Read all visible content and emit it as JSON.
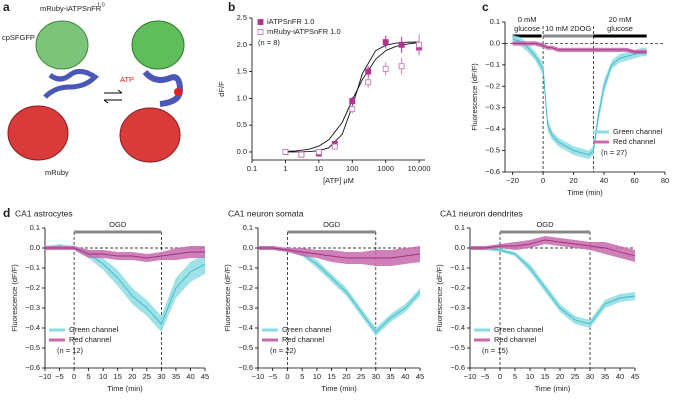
{
  "figure": {
    "panel_labels": [
      "a",
      "b",
      "c",
      "d"
    ],
    "structure": {
      "title": "mRuby-iATPSnFR",
      "title_sup": "1.0",
      "top_label": "cpSFGFP",
      "ligand": "ATP",
      "bottom_label": "mRuby"
    }
  },
  "chart_data": [
    {
      "type": "scatter",
      "xscale": "log",
      "x_label": "[ATP] μM",
      "y_label": "dF/F",
      "annotation": "(n = 8)",
      "legend": "upper left",
      "x": [
        1,
        3,
        10,
        30,
        100,
        300,
        1000,
        3000,
        10000
      ],
      "xlim": [
        0.1,
        15000
      ],
      "xticks": [
        0.1,
        1,
        10,
        100,
        1000,
        {
          "value": 10000,
          "label": "10,000"
        }
      ],
      "ylim": [
        -0.15,
        2.5
      ],
      "yticks": [
        {
          "value": 0,
          "label": "0.0"
        },
        0.5,
        {
          "value": 1,
          "label": "1.0"
        },
        1.5,
        {
          "value": 2,
          "label": "2.0"
        },
        2.5
      ],
      "series": [
        {
          "name": "iATPSnFR 1.0",
          "color": "#b0338f",
          "marker": "filled",
          "values": [
            0,
            -0.05,
            -0.03,
            0.15,
            0.95,
            1.5,
            2.05,
            2.0,
            1.95
          ],
          "errors": [
            0.03,
            0.03,
            0.03,
            0.05,
            0.08,
            0.1,
            0.12,
            0.15,
            0.12
          ]
        },
        {
          "name": "mRuby-iATPSnFR 1.0",
          "color": "#c77dbb",
          "marker": "open",
          "values": [
            0,
            -0.05,
            0,
            0.1,
            0.8,
            1.3,
            1.55,
            1.6,
            2.0
          ],
          "errors": [
            0.03,
            0.03,
            0.03,
            0.05,
            0.08,
            0.1,
            0.12,
            0.15,
            0.2
          ]
        }
      ],
      "fits": [
        {
          "color": "#111",
          "x": [
            1,
            2,
            5,
            10,
            20,
            50,
            100,
            200,
            500,
            1000,
            2000,
            5000,
            10000
          ],
          "values": [
            0,
            0.001,
            0.007,
            0.022,
            0.08,
            0.33,
            0.85,
            1.46,
            1.89,
            1.99,
            2.03,
            2.05,
            2.05
          ]
        },
        {
          "color": "#111",
          "x": [
            1,
            2,
            5,
            10,
            20,
            50,
            100,
            200,
            500,
            1000,
            2000,
            5000,
            10000
          ],
          "values": [
            0.01,
            0.02,
            0.05,
            0.11,
            0.23,
            0.55,
            0.97,
            1.35,
            1.73,
            1.89,
            1.97,
            2.02,
            2.04
          ]
        }
      ]
    },
    {
      "type": "line",
      "x_label": "Time (min)",
      "y_label": "Fluorescence (dF/F)",
      "annotation": "(n = 27)",
      "legend": "lower right",
      "x": [
        -20,
        -15,
        -10,
        -5,
        0,
        3,
        6,
        10,
        15,
        20,
        25,
        30,
        33,
        36,
        40,
        45,
        50,
        55,
        60,
        65,
        68
      ],
      "xlim": [
        -25,
        80
      ],
      "xticks": [
        {
          "value": -20,
          "label": "−20"
        },
        0,
        20,
        40,
        60,
        80
      ],
      "ylim": [
        -0.6,
        0.1
      ],
      "yticks": [
        0.1,
        {
          "value": 0,
          "label": "0.0"
        },
        {
          "value": -0.1,
          "label": "−0.1"
        },
        {
          "value": -0.2,
          "label": "−0.2"
        },
        {
          "value": -0.3,
          "label": "−0.3"
        },
        {
          "value": -0.4,
          "label": "−0.4"
        },
        {
          "value": -0.5,
          "label": "−0.5"
        },
        {
          "value": -0.6,
          "label": "−0.6"
        }
      ],
      "hline": 0,
      "vlines": [
        0,
        33
      ],
      "periods": [
        {
          "label": [
            "0 mM",
            "glucose"
          ],
          "start": -20,
          "end": -1,
          "color": "#000"
        },
        {
          "label": [
            "10 mM 2DOG"
          ],
          "start": 0,
          "end": 33,
          "color": "#888"
        },
        {
          "label": [
            "20 mM",
            "glucose"
          ],
          "start": 33,
          "end": 68,
          "color": "#000"
        }
      ],
      "series": [
        {
          "name": "Green channel",
          "color": "#3fb9c6",
          "band_color": "#8ddce2",
          "values": [
            0.02,
            0.01,
            -0.02,
            -0.06,
            -0.12,
            -0.38,
            -0.43,
            -0.46,
            -0.48,
            -0.5,
            -0.51,
            -0.52,
            -0.5,
            -0.35,
            -0.2,
            -0.1,
            -0.07,
            -0.06,
            -0.05,
            -0.04,
            -0.04
          ],
          "errors": [
            0.02,
            0.02,
            0.02,
            0.02,
            0.03,
            0.03,
            0.02,
            0.02,
            0.02,
            0.02,
            0.02,
            0.02,
            0.02,
            0.03,
            0.03,
            0.02,
            0.02,
            0.02,
            0.02,
            0.02,
            0.02
          ]
        },
        {
          "name": "Red channel",
          "color": "#a0317f",
          "band_color": "#c86aab",
          "values": [
            0,
            0,
            0,
            0,
            -0.01,
            -0.02,
            -0.02,
            -0.03,
            -0.03,
            -0.03,
            -0.03,
            -0.03,
            -0.03,
            -0.03,
            -0.03,
            -0.03,
            -0.03,
            -0.03,
            -0.04,
            -0.04,
            -0.04
          ],
          "errors": [
            0.01,
            0.01,
            0.01,
            0.01,
            0.01,
            0.01,
            0.01,
            0.01,
            0.01,
            0.01,
            0.01,
            0.01,
            0.01,
            0.01,
            0.01,
            0.01,
            0.01,
            0.01,
            0.01,
            0.01,
            0.01
          ]
        }
      ]
    },
    {
      "type": "line",
      "title": "CA1 astrocytes",
      "x_label": "Time (min)",
      "y_label": "Fluorescence (dF/F)",
      "annotation": "(n = 12)",
      "legend": "lower left",
      "x": [
        -10,
        -5,
        0,
        5,
        10,
        15,
        20,
        25,
        30,
        35,
        40,
        45
      ],
      "xlim": [
        -10,
        45
      ],
      "xticks": [
        {
          "value": -10,
          "label": "−10"
        },
        {
          "value": -5,
          "label": "−5"
        },
        0,
        5,
        10,
        15,
        20,
        25,
        30,
        35,
        40,
        45
      ],
      "ylim": [
        -0.6,
        0.1
      ],
      "yticks": [
        0.1,
        {
          "value": 0,
          "label": "0.0"
        },
        {
          "value": -0.1,
          "label": "−0.1"
        },
        {
          "value": -0.2,
          "label": "−0.2"
        },
        {
          "value": -0.3,
          "label": "−0.3"
        },
        {
          "value": -0.4,
          "label": "−0.4"
        },
        {
          "value": -0.5,
          "label": "−0.5"
        },
        {
          "value": -0.6,
          "label": "−0.6"
        }
      ],
      "hline": 0,
      "vlines": [
        0,
        30
      ],
      "periods": [
        {
          "label": [
            "OGD"
          ],
          "start": 0,
          "end": 30,
          "color": "#888"
        }
      ],
      "series": [
        {
          "name": "Green channel",
          "color": "#3fb9c6",
          "band_color": "#8ddce2",
          "values": [
            0,
            0.01,
            0,
            -0.03,
            -0.08,
            -0.15,
            -0.24,
            -0.3,
            -0.38,
            -0.2,
            -0.12,
            -0.08
          ],
          "errors": [
            0.01,
            0.01,
            0.01,
            0.02,
            0.03,
            0.04,
            0.04,
            0.04,
            0.04,
            0.05,
            0.05,
            0.05
          ]
        },
        {
          "name": "Red channel",
          "color": "#a0317f",
          "band_color": "#c86aab",
          "values": [
            0,
            0,
            0,
            -0.03,
            -0.03,
            -0.04,
            -0.04,
            -0.05,
            -0.04,
            -0.03,
            -0.02,
            -0.02
          ],
          "errors": [
            0.01,
            0.01,
            0.01,
            0.02,
            0.02,
            0.02,
            0.02,
            0.02,
            0.02,
            0.03,
            0.03,
            0.03
          ]
        }
      ]
    },
    {
      "type": "line",
      "title": "CA1 neuron somata",
      "x_label": "Time (min)",
      "y_label": "Fluorescence (dF/F)",
      "annotation": "(n = 22)",
      "legend": "lower left",
      "x": [
        -10,
        -5,
        0,
        5,
        10,
        15,
        20,
        25,
        30,
        35,
        40,
        45
      ],
      "xlim": [
        -10,
        45
      ],
      "xticks": [
        {
          "value": -10,
          "label": "−10"
        },
        {
          "value": -5,
          "label": "−5"
        },
        0,
        5,
        10,
        15,
        20,
        25,
        30,
        35,
        40,
        45
      ],
      "ylim": [
        -0.6,
        0.1
      ],
      "yticks": [
        0.1,
        {
          "value": 0,
          "label": "0.0"
        },
        {
          "value": -0.1,
          "label": "−0.1"
        },
        {
          "value": -0.2,
          "label": "−0.2"
        },
        {
          "value": -0.3,
          "label": "−0.3"
        },
        {
          "value": -0.4,
          "label": "−0.4"
        },
        {
          "value": -0.5,
          "label": "−0.5"
        },
        {
          "value": -0.6,
          "label": "−0.6"
        }
      ],
      "hline": 0,
      "vlines": [
        0,
        30
      ],
      "periods": [
        {
          "label": [
            "OGD"
          ],
          "start": 0,
          "end": 30,
          "color": "#888"
        }
      ],
      "series": [
        {
          "name": "Green channel",
          "color": "#3fb9c6",
          "band_color": "#8ddce2",
          "values": [
            0,
            0,
            -0.01,
            -0.03,
            -0.08,
            -0.15,
            -0.22,
            -0.32,
            -0.42,
            -0.35,
            -0.3,
            -0.22
          ],
          "errors": [
            0.01,
            0.01,
            0.01,
            0.01,
            0.02,
            0.02,
            0.02,
            0.02,
            0.02,
            0.02,
            0.02,
            0.02
          ]
        },
        {
          "name": "Red channel",
          "color": "#a0317f",
          "band_color": "#c86aab",
          "values": [
            0,
            0,
            -0.01,
            -0.02,
            -0.03,
            -0.04,
            -0.05,
            -0.05,
            -0.05,
            -0.05,
            -0.04,
            -0.03
          ],
          "errors": [
            0.01,
            0.01,
            0.01,
            0.02,
            0.02,
            0.03,
            0.03,
            0.03,
            0.04,
            0.04,
            0.04,
            0.04
          ]
        }
      ]
    },
    {
      "type": "line",
      "title": "CA1 neuron dendrites",
      "x_label": "Time (min)",
      "y_label": "Fluorescence (dF/F)",
      "annotation": "(n = 15)",
      "legend": "lower left",
      "x": [
        -10,
        -5,
        0,
        5,
        10,
        15,
        20,
        25,
        30,
        35,
        40,
        45
      ],
      "xlim": [
        -10,
        45
      ],
      "xticks": [
        {
          "value": -10,
          "label": "−10"
        },
        {
          "value": -5,
          "label": "−5"
        },
        0,
        5,
        10,
        15,
        20,
        25,
        30,
        35,
        40,
        45
      ],
      "ylim": [
        -0.6,
        0.1
      ],
      "yticks": [
        0.1,
        {
          "value": 0,
          "label": "0.0"
        },
        {
          "value": -0.1,
          "label": "−0.1"
        },
        {
          "value": -0.2,
          "label": "−0.2"
        },
        {
          "value": -0.3,
          "label": "−0.3"
        },
        {
          "value": -0.4,
          "label": "−0.4"
        },
        {
          "value": -0.5,
          "label": "−0.5"
        },
        {
          "value": -0.6,
          "label": "−0.6"
        }
      ],
      "hline": 0,
      "vlines": [
        0,
        30
      ],
      "periods": [
        {
          "label": [
            "OGD"
          ],
          "start": 0,
          "end": 30,
          "color": "#888"
        }
      ],
      "series": [
        {
          "name": "Green channel",
          "color": "#3fb9c6",
          "band_color": "#8ddce2",
          "values": [
            0,
            0,
            -0.01,
            -0.03,
            -0.1,
            -0.2,
            -0.3,
            -0.36,
            -0.38,
            -0.28,
            -0.25,
            -0.24
          ],
          "errors": [
            0.01,
            0.01,
            0.01,
            0.01,
            0.02,
            0.02,
            0.02,
            0.02,
            0.02,
            0.02,
            0.02,
            0.02
          ]
        },
        {
          "name": "Red channel",
          "color": "#a0317f",
          "band_color": "#c86aab",
          "values": [
            0,
            0,
            0.01,
            0.01,
            0.02,
            0.04,
            0.03,
            0.02,
            0.01,
            0,
            -0.02,
            -0.04
          ],
          "errors": [
            0.01,
            0.01,
            0.01,
            0.02,
            0.02,
            0.02,
            0.02,
            0.02,
            0.02,
            0.03,
            0.03,
            0.03
          ]
        }
      ]
    }
  ]
}
